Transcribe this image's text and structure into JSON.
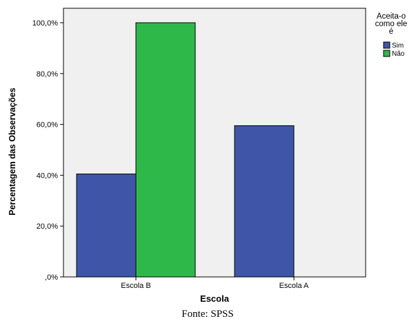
{
  "chart_data": {
    "type": "bar",
    "categories": [
      "Escola B",
      "Escola A"
    ],
    "series": [
      {
        "name": "Sim",
        "values": [
          40.5,
          59.5
        ],
        "color": "#3f56a8"
      },
      {
        "name": "Não",
        "values": [
          100.0,
          0.0
        ],
        "color": "#2fb84a"
      }
    ],
    "xlabel": "Escola",
    "ylabel": "Percentagem das Observações",
    "ylim": [
      0,
      100
    ],
    "yticks": [
      {
        "value": 0,
        "label": ",0%"
      },
      {
        "value": 20,
        "label": "20,0%"
      },
      {
        "value": 40,
        "label": "40,0%"
      },
      {
        "value": 60,
        "label": "60,0%"
      },
      {
        "value": 80,
        "label": "80,0%"
      },
      {
        "value": 100,
        "label": "100,0%"
      }
    ],
    "legend": {
      "title_lines": [
        "Aceita-o",
        "como ele",
        "é"
      ],
      "placement": "right"
    },
    "plot_background": "#f0f0f0",
    "bar_border_color": "#000000",
    "grid": false
  },
  "caption": "Fonte: SPSS"
}
